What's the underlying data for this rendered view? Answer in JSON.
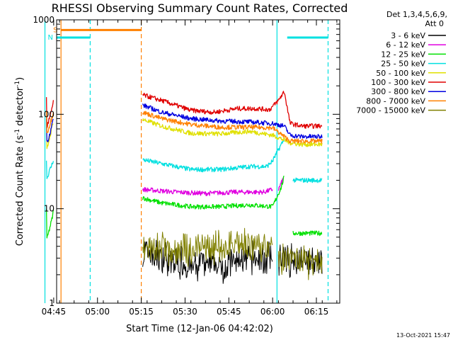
{
  "chart_data": {
    "type": "line",
    "title": "RHESSI Observing Summary Count Rates, Corrected",
    "xlabel": "Start Time (12-Jan-06 04:42:02)",
    "ylabel": "Corrected Count Rate (s",
    "ylabel_sup": "-1",
    "ylabel_tail": " detector",
    "ylabel_sup2": "-1",
    "ylabel_close": ")",
    "yscale": "log",
    "ylim": [
      1,
      1000
    ],
    "xlim_minutes": [
      4.0,
      101.0
    ],
    "x_start": "04:42:02",
    "xticks": [
      {
        "label": "04:45",
        "min": 3
      },
      {
        "label": "05:00",
        "min": 18
      },
      {
        "label": "05:15",
        "min": 33
      },
      {
        "label": "05:30",
        "min": 48
      },
      {
        "label": "05:45",
        "min": 63
      },
      {
        "label": "06:00",
        "min": 78
      },
      {
        "label": "06:15",
        "min": 93
      }
    ],
    "yticks": [
      {
        "label": "1",
        "value": 1
      },
      {
        "label": "10",
        "value": 10
      },
      {
        "label": "100",
        "value": 100
      },
      {
        "label": "1000",
        "value": 1000
      }
    ],
    "legend_title": [
      "Det 1,3,4,5,6,9,",
      "Att 0"
    ],
    "legend_position": "right",
    "series": [
      {
        "name": "3 - 6 keV",
        "color": "#000000",
        "style": "noise",
        "segments": [
          [
            [
              33.5,
              3.5
            ],
            [
              40,
              3.0
            ],
            [
              50,
              2.5
            ],
            [
              60,
              2.5
            ],
            [
              70,
              3.0
            ],
            [
              78,
              3.0
            ]
          ],
          [
            [
              80,
              3.0
            ],
            [
              90,
              2.8
            ],
            [
              95,
              2.5
            ]
          ]
        ]
      },
      {
        "name": "6 - 12 keV",
        "color": "#e000e0",
        "style": "band",
        "segments": [
          [
            [
              33.5,
              16
            ],
            [
              45,
              15
            ],
            [
              55,
              14.5
            ],
            [
              65,
              15
            ],
            [
              75,
              15
            ],
            [
              78,
              16
            ]
          ],
          [
            [
              80,
              16
            ],
            [
              82,
              22
            ]
          ]
        ]
      },
      {
        "name": "12 - 25 keV",
        "color": "#00e000",
        "style": "band",
        "segments": [
          [
            [
              0.5,
              4.5
            ],
            [
              1.5,
              6
            ],
            [
              2.5,
              8
            ],
            [
              3.0,
              10
            ]
          ],
          [
            [
              33.5,
              13
            ],
            [
              40,
              11.5
            ],
            [
              50,
              10.5
            ],
            [
              60,
              10.5
            ],
            [
              70,
              11
            ],
            [
              78,
              10.5
            ],
            [
              81,
              17
            ],
            [
              82,
              22
            ]
          ],
          [
            [
              85,
              5.5
            ],
            [
              95,
              5.5
            ]
          ]
        ]
      },
      {
        "name": "25 - 50 keV",
        "color": "#00e0e0",
        "style": "band",
        "segments": [
          [
            [
              0.5,
              20
            ],
            [
              1.5,
              25
            ],
            [
              2.5,
              30
            ],
            [
              3.0,
              34
            ]
          ],
          [
            [
              33.5,
              33
            ],
            [
              40,
              30
            ],
            [
              50,
              26
            ],
            [
              60,
              26
            ],
            [
              70,
              28
            ],
            [
              76,
              28
            ],
            [
              78,
              32
            ],
            [
              80,
              42
            ],
            [
              82,
              55
            ]
          ],
          [
            [
              85,
              20
            ],
            [
              95,
              20
            ]
          ]
        ]
      },
      {
        "name": "50 - 100 keV",
        "color": "#e0e000",
        "style": "band",
        "segments": [
          [
            [
              0.5,
              40
            ],
            [
              1.5,
              55
            ],
            [
              2.5,
              75
            ],
            [
              3.0,
              85
            ]
          ],
          [
            [
              33.5,
              88
            ],
            [
              40,
              75
            ],
            [
              50,
              63
            ],
            [
              60,
              62
            ],
            [
              70,
              66
            ],
            [
              78,
              60
            ],
            [
              81,
              55
            ],
            [
              84,
              50
            ],
            [
              88,
              48
            ],
            [
              95,
              48
            ]
          ]
        ]
      },
      {
        "name": "100 - 300 keV",
        "color": "#e00000",
        "style": "band",
        "segments": [
          [
            [
              0.5,
              70
            ],
            [
              1.5,
              90
            ],
            [
              2.5,
              115
            ],
            [
              3.0,
              150
            ]
          ],
          [
            [
              33.5,
              160
            ],
            [
              40,
              140
            ],
            [
              50,
              110
            ],
            [
              58,
              105
            ],
            [
              66,
              115
            ],
            [
              72,
              115
            ],
            [
              77,
              112
            ],
            [
              80,
              140
            ],
            [
              82,
              175
            ],
            [
              84,
              80
            ],
            [
              88,
              75
            ],
            [
              95,
              75
            ]
          ]
        ]
      },
      {
        "name": "300 - 800 keV",
        "color": "#0000e0",
        "style": "band",
        "segments": [
          [
            [
              0.5,
              48
            ],
            [
              1.5,
              60
            ],
            [
              2.5,
              80
            ],
            [
              3.0,
              95
            ]
          ],
          [
            [
              33.5,
              125
            ],
            [
              40,
              105
            ],
            [
              50,
              90
            ],
            [
              60,
              85
            ],
            [
              70,
              83
            ],
            [
              78,
              80
            ],
            [
              82,
              75
            ],
            [
              84,
              60
            ],
            [
              88,
              58
            ],
            [
              95,
              58
            ]
          ]
        ]
      },
      {
        "name": "800 - 7000 keV",
        "color": "#ff8000",
        "style": "band",
        "segments": [
          [
            [
              0.5,
              60
            ],
            [
              1.5,
              75
            ],
            [
              2.5,
              95
            ],
            [
              3.0,
              115
            ]
          ],
          [
            [
              33.5,
              105
            ],
            [
              40,
              90
            ],
            [
              50,
              78
            ],
            [
              60,
              73
            ],
            [
              70,
              73
            ],
            [
              78,
              72
            ],
            [
              84,
              52
            ],
            [
              88,
              52
            ],
            [
              95,
              52
            ]
          ]
        ]
      },
      {
        "name": "7000 - 15000 keV",
        "color": "#808000",
        "style": "noise",
        "segments": [
          [
            [
              33.5,
              4.0
            ],
            [
              45,
              3.5
            ],
            [
              55,
              3.8
            ],
            [
              70,
              4.0
            ],
            [
              78,
              4.0
            ]
          ],
          [
            [
              80,
              2.8
            ],
            [
              95,
              2.8
            ]
          ]
        ]
      }
    ],
    "annotations": {
      "flags": [
        {
          "label": "S",
          "color": "#ff8000",
          "x_from": 5.5,
          "x_to": 33,
          "y": 780
        },
        {
          "label": "N",
          "color": "#00e0e0",
          "x_from": 0,
          "x_to": 15.5,
          "y": 650
        },
        {
          "label": "",
          "color": "#00e0e0",
          "x_from": 83,
          "x_to": 97,
          "y": 650
        }
      ],
      "vlines": [
        {
          "x": 5.5,
          "color": "#ff8000",
          "dashed": false
        },
        {
          "x": 33,
          "color": "#ff8000",
          "dashed": true
        },
        {
          "x": 15.5,
          "color": "#00e0e0",
          "dashed": true
        },
        {
          "x": 0,
          "color": "#00e0e0",
          "dashed": false
        },
        {
          "x": 79.5,
          "color": "#00e0e0",
          "dashed": false
        },
        {
          "x": 97,
          "color": "#00e0e0",
          "dashed": true
        }
      ]
    },
    "footer_date": "13-Oct-2021 15:47"
  }
}
